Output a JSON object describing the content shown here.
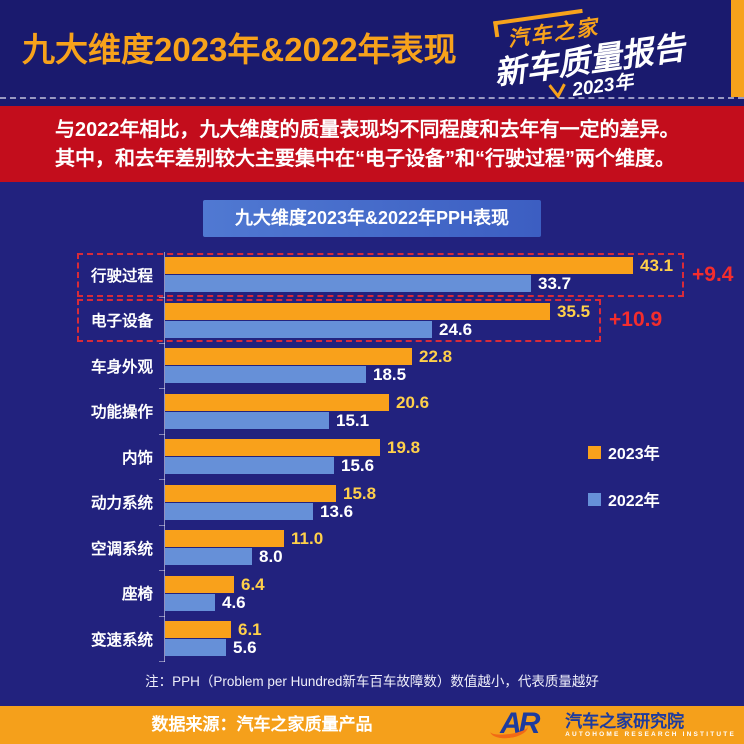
{
  "header": {
    "title": "九大维度2023年&2022年表现",
    "logo": {
      "brand": "汽车之家",
      "line1": "新车质量报告",
      "line2": "2023年"
    }
  },
  "banner": {
    "line1": "与2022年相比，九大维度的质量表现均不同程度和去年有一定的差异。",
    "line2": "其中，和去年差别较大主要集中在“电子设备”和“行驶过程”两个维度。"
  },
  "chart_data": {
    "type": "bar",
    "orientation": "horizontal",
    "title": "九大维度2023年&2022年PPH表现",
    "categories": [
      "行驶过程",
      "电子设备",
      "车身外观",
      "功能操作",
      "内饰",
      "动力系统",
      "空调系统",
      "座椅",
      "变速系统"
    ],
    "series": [
      {
        "name": "2023年",
        "color": "#F9A11B",
        "values": [
          43.1,
          35.5,
          22.8,
          20.6,
          19.8,
          15.8,
          11.0,
          6.4,
          6.1
        ]
      },
      {
        "name": "2022年",
        "color": "#6690D8",
        "values": [
          33.7,
          24.6,
          18.5,
          15.1,
          15.6,
          13.6,
          8.0,
          4.6,
          5.6
        ]
      }
    ],
    "annotations": [
      {
        "category": "行驶过程",
        "label": "+9.4",
        "color": "#F42D2D"
      },
      {
        "category": "电子设备",
        "label": "+10.9",
        "color": "#F42D2D"
      }
    ],
    "highlighted_categories": [
      "行驶过程",
      "电子设备"
    ],
    "value_label_colors": {
      "2023年": "#FFD04A",
      "2022年": "#FFFFFF"
    },
    "xlim": [
      0,
      53
    ],
    "grid": false,
    "legend_position": "right-middle"
  },
  "note": "注：PPH（Problem per Hundred新车百车故障数）数值越小，代表质量越好",
  "footer": {
    "source": "数据来源：汽车之家质量产品",
    "ar": "AR",
    "org": "汽车之家研究院",
    "org_en": "AUTOHOME  RESEARCH  INSTITUTE"
  },
  "colors": {
    "page_bg": "#1A1A6E",
    "panel_bg": "#22227E",
    "banner_bg": "#C30D1C",
    "footer_bg": "#F5A01B",
    "title_accent": "#F7A21B",
    "bar_2023": "#F9A11B",
    "bar_2022": "#6690D8",
    "diff_red": "#F42D2D"
  }
}
